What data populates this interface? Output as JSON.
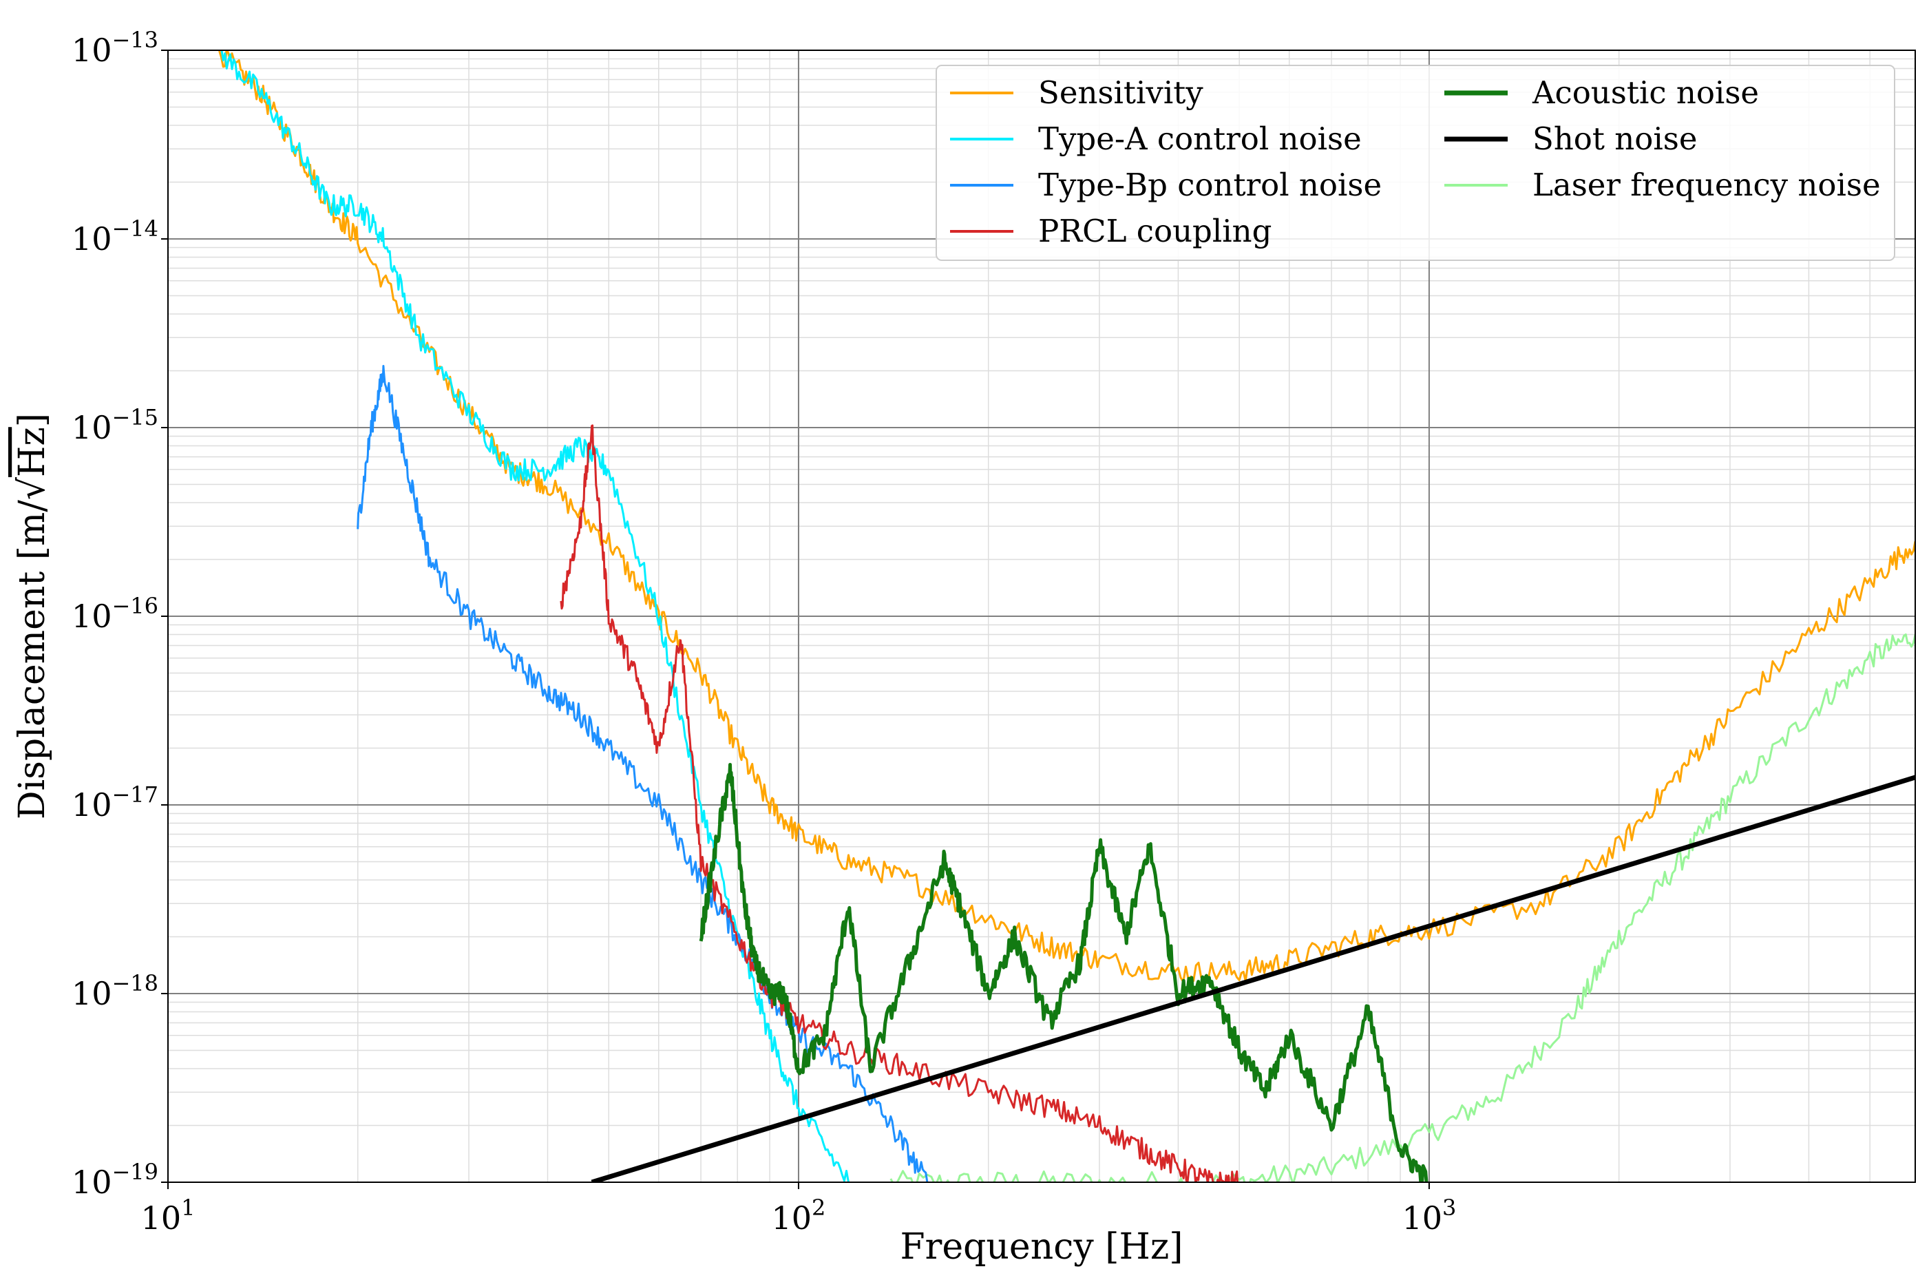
{
  "chart_data": {
    "type": "line",
    "xscale": "log",
    "yscale": "log",
    "xlim": [
      10,
      5900
    ],
    "ylim": [
      1e-19,
      1e-13
    ],
    "grid": true,
    "xlabel": "Frequency [Hz]",
    "ylabel_prefix": "Displacement [m/",
    "ylabel_radical": "√",
    "ylabel_radicand": "Hz",
    "ylabel_suffix": "]",
    "xticks": [
      {
        "base": "10",
        "exp": "1",
        "value": 10
      },
      {
        "base": "10",
        "exp": "2",
        "value": 100
      },
      {
        "base": "10",
        "exp": "3",
        "value": 1000
      }
    ],
    "yticks": [
      {
        "base": "10",
        "exp": "−13",
        "value": 1e-13
      },
      {
        "base": "10",
        "exp": "−14",
        "value": 1e-14
      },
      {
        "base": "10",
        "exp": "−15",
        "value": 1e-15
      },
      {
        "base": "10",
        "exp": "−16",
        "value": 1e-16
      },
      {
        "base": "10",
        "exp": "−17",
        "value": 1e-17
      },
      {
        "base": "10",
        "exp": "−18",
        "value": 1e-18
      },
      {
        "base": "10",
        "exp": "−19",
        "value": 1e-19
      }
    ],
    "legend_placement": "top-right",
    "series": [
      {
        "name": "Laser frequency noise",
        "color": "#98f598",
        "width": 3,
        "x": [
          140,
          200,
          300,
          500,
          700,
          1000,
          1300,
          1700,
          2000,
          2500,
          3000,
          4000,
          5000,
          5900
        ],
        "y": [
          1e-19,
          1e-19,
          1e-19,
          1e-19,
          1.2e-19,
          1.8e-19,
          3e-19,
          8e-19,
          2e-18,
          5e-18,
          1.1e-17,
          3e-17,
          6e-17,
          8e-17
        ]
      },
      {
        "name": "Sensitivity",
        "color": "#ffa500",
        "width": 3,
        "x": [
          12,
          14,
          16,
          18,
          20,
          25,
          30,
          35,
          40,
          50,
          60,
          70,
          80,
          90,
          100,
          120,
          150,
          200,
          250,
          300,
          400,
          500,
          600,
          800,
          1000,
          1500,
          2000,
          2500,
          3000,
          4000,
          5000,
          5900
        ],
        "y": [
          1e-13,
          6e-14,
          3e-14,
          1.5e-14,
          1e-14,
          3e-15,
          1.2e-15,
          6e-16,
          5e-16,
          2.5e-16,
          1e-16,
          5e-17,
          2e-17,
          1e-17,
          7e-18,
          5e-18,
          4e-18,
          2.5e-18,
          1.8e-18,
          1.5e-18,
          1.3e-18,
          1.3e-18,
          1.5e-18,
          2e-18,
          2.2e-18,
          3e-18,
          6e-18,
          1.5e-17,
          3e-17,
          8e-17,
          1.5e-16,
          2.5e-16
        ]
      },
      {
        "name": "Type-A control noise",
        "color": "#00eeff",
        "width": 3,
        "x": [
          12,
          14,
          16,
          18,
          20,
          22,
          25,
          30,
          35,
          40,
          45,
          50,
          60,
          70,
          80,
          90,
          100,
          120
        ],
        "y": [
          1e-13,
          6e-14,
          3e-14,
          1.5e-14,
          1.5e-14,
          1e-14,
          3e-15,
          1.2e-15,
          6e-16,
          6e-16,
          8e-16,
          6e-16,
          1e-16,
          1e-17,
          2e-18,
          6e-19,
          2.5e-19,
          1e-19
        ]
      },
      {
        "name": "Type-Bp control noise",
        "color": "#1e90ff",
        "width": 3,
        "x": [
          20,
          21,
          22,
          24,
          26,
          30,
          35,
          40,
          45,
          50,
          60,
          70,
          80,
          90,
          100,
          120,
          140,
          160
        ],
        "y": [
          3e-16,
          1e-15,
          2e-15,
          6e-16,
          2e-16,
          1e-16,
          6e-17,
          4e-17,
          3e-17,
          2e-17,
          1e-17,
          4e-18,
          2e-18,
          1e-18,
          6e-19,
          4e-19,
          2e-19,
          1e-19
        ]
      },
      {
        "name": "PRCL coupling",
        "color": "#d62728",
        "width": 3,
        "x": [
          42,
          45,
          47,
          50,
          55,
          60,
          65,
          70,
          80,
          90,
          100,
          120,
          150,
          200,
          250,
          300,
          350,
          400,
          450,
          500
        ],
        "y": [
          1.2e-16,
          3e-16,
          1e-15,
          1e-16,
          5e-17,
          2e-17,
          8e-17,
          5e-18,
          2e-18,
          1e-18,
          7e-19,
          5e-19,
          4e-19,
          3e-19,
          2.5e-19,
          2e-19,
          1.5e-19,
          1.2e-19,
          1e-19,
          1e-19
        ]
      },
      {
        "name": "Acoustic noise",
        "color": "#127a12",
        "width": 5,
        "x": [
          70,
          75,
          78,
          82,
          85,
          90,
          95,
          100,
          110,
          120,
          130,
          150,
          170,
          180,
          200,
          220,
          250,
          280,
          300,
          330,
          360,
          400,
          450,
          500,
          550,
          600,
          700,
          800,
          900,
          1000
        ],
        "y": [
          2e-18,
          8e-18,
          1.5e-17,
          3e-18,
          1.5e-18,
          1e-18,
          1e-18,
          4e-19,
          6e-19,
          3e-18,
          4e-19,
          1.5e-18,
          5e-18,
          3e-18,
          1e-18,
          2e-18,
          7e-19,
          1.5e-18,
          6e-18,
          2e-18,
          6e-18,
          1e-18,
          1.2e-18,
          5e-19,
          3e-19,
          6e-19,
          2e-19,
          8e-19,
          1.5e-19,
          1e-19
        ]
      },
      {
        "name": "Shot noise",
        "color": "#000000",
        "width": 7,
        "x": [
          47,
          5900
        ],
        "y": [
          1e-19,
          1.4e-17
        ]
      }
    ],
    "legend": [
      {
        "label": "Sensitivity",
        "color": "#ffa500",
        "width": 4
      },
      {
        "label": "Type-A control noise",
        "color": "#00eeff",
        "width": 4
      },
      {
        "label": "Type-Bp control noise",
        "color": "#1e90ff",
        "width": 4
      },
      {
        "label": "PRCL coupling",
        "color": "#d62728",
        "width": 4
      },
      {
        "label": "Acoustic noise",
        "color": "#127a12",
        "width": 7
      },
      {
        "label": "Shot noise",
        "color": "#000000",
        "width": 7
      },
      {
        "label": "Laser frequency noise",
        "color": "#98f598",
        "width": 4
      }
    ]
  }
}
